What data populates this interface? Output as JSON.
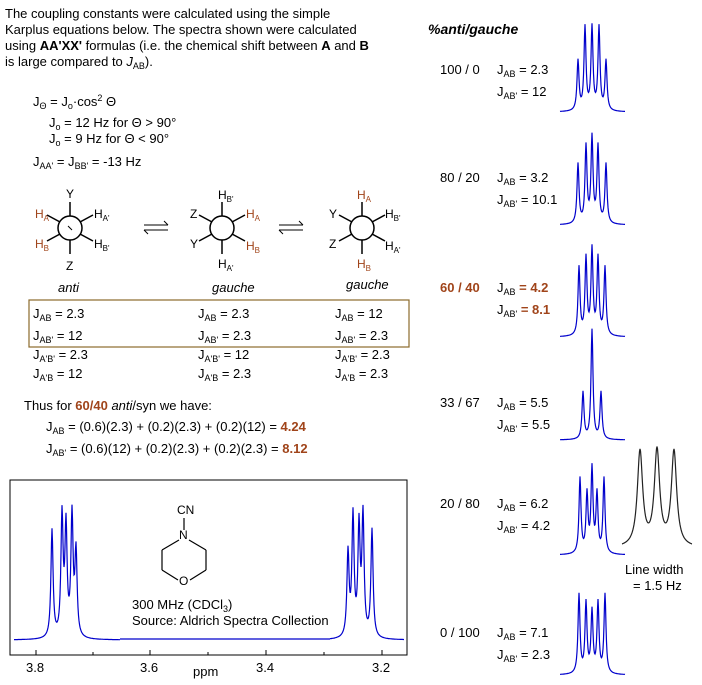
{
  "intro": {
    "line1": "The coupling constants were calculated using the simple",
    "line2": "Karplus equations below. The spectra shown were calculated",
    "line3a": "using ",
    "line3b": "AA'XX'",
    "line3c": " formulas (i.e. the chemical shift between ",
    "line3d": "A",
    "line3e": " and ",
    "line3f": "B",
    "line4a": "is large compared to ",
    "line4b": "J",
    "line4c": "AB",
    "line4d": ")."
  },
  "equations": {
    "karplus_lhs": "J",
    "karplus_sub": "Θ",
    "karplus_eq": " = J",
    "karplus_sub2": "o",
    "karplus_rhs": "·cos",
    "karplus_sup": "2",
    "karplus_theta": " Θ",
    "j0_large_a": "J",
    "j0_large_sub": "o",
    "j0_large_b": " = 12 Hz for  Θ > 90°",
    "j0_small_a": "J",
    "j0_small_sub": "o",
    "j0_small_b": " = 9 Hz for  Θ < 90°",
    "jaa_a": "J",
    "jaa_sub": "AA'",
    "jaa_b": " = J",
    "jaa_sub2": "BB'",
    "jaa_c": "  =  -13 Hz"
  },
  "newman": {
    "anti_label": "anti",
    "gauche1_label": "gauche",
    "gauche2_label": "gauche",
    "Y": "Y",
    "Z": "Z",
    "HA": "H",
    "HA_sub": "A",
    "HAp_sub": "A'",
    "HB": "H",
    "HB_sub": "B",
    "HBp_sub": "B'"
  },
  "jtable": {
    "rows": [
      [
        "2.3",
        "2.3",
        "12"
      ],
      [
        "12",
        "2.3",
        "2.3"
      ],
      [
        "2.3",
        "12",
        "2.3"
      ],
      [
        "12",
        "2.3",
        "2.3"
      ]
    ],
    "labels": [
      "AB",
      "AB'",
      "A'B'",
      "A'B"
    ],
    "eq": " = "
  },
  "calc": {
    "thus_a": "Thus for ",
    "thus_b": "60/40",
    "thus_c": " anti",
    "thus_d": "/syn we have:",
    "line1_a": "J",
    "line1_sub": "AB",
    "line1_b": "  = (0.6)(2.3) + (0.2)(2.3) + (0.2)(12) = ",
    "line1_c": "4.24",
    "line2_a": "J",
    "line2_sub": "AB'",
    "line2_b": "  = (0.6)(12) + (0.2)(2.3) + (0.2)(2.3) = ",
    "line2_c": "8.12"
  },
  "spectrum": {
    "structure_cn": "CN",
    "structure_n": "N",
    "structure_o": "O",
    "freq_a": "300 MHz (CDCl",
    "freq_sub": "3",
    "freq_b": ")",
    "source": "Source: Aldrich Spectra Collection",
    "ticks": [
      "3.8",
      "3.6",
      "3.4",
      "3.2"
    ],
    "axis_label": "ppm"
  },
  "right_panel": {
    "header_a": "%",
    "header_b": "anti",
    "header_c": "/",
    "header_d": "gauche",
    "entries": [
      {
        "ratio": "100 / 0",
        "jab": "2.3",
        "jabp": "12",
        "highlight": false
      },
      {
        "ratio": "80 / 20",
        "jab": "3.2",
        "jabp": "10.1",
        "highlight": false
      },
      {
        "ratio": "60 / 40",
        "jab": "4.2",
        "jabp": "8.1",
        "highlight": true
      },
      {
        "ratio": "33 / 67",
        "jab": "5.5",
        "jabp": "5.5",
        "highlight": false
      },
      {
        "ratio": "20 / 80",
        "jab": "6.2",
        "jabp": "4.2",
        "highlight": false
      },
      {
        "ratio": "0 / 100",
        "jab": "7.1",
        "jabp": "2.3",
        "highlight": false
      }
    ],
    "j_letter": "J",
    "ab_sub": "AB",
    "abp_sub": "AB'",
    "eq": " = ",
    "linewidth_1": "Line width",
    "linewidth_2": "= 1.5 Hz"
  },
  "colors": {
    "brown": "#a0441a",
    "spectrum_blue": "#0000cc",
    "box_border": "#8b6a2b"
  }
}
